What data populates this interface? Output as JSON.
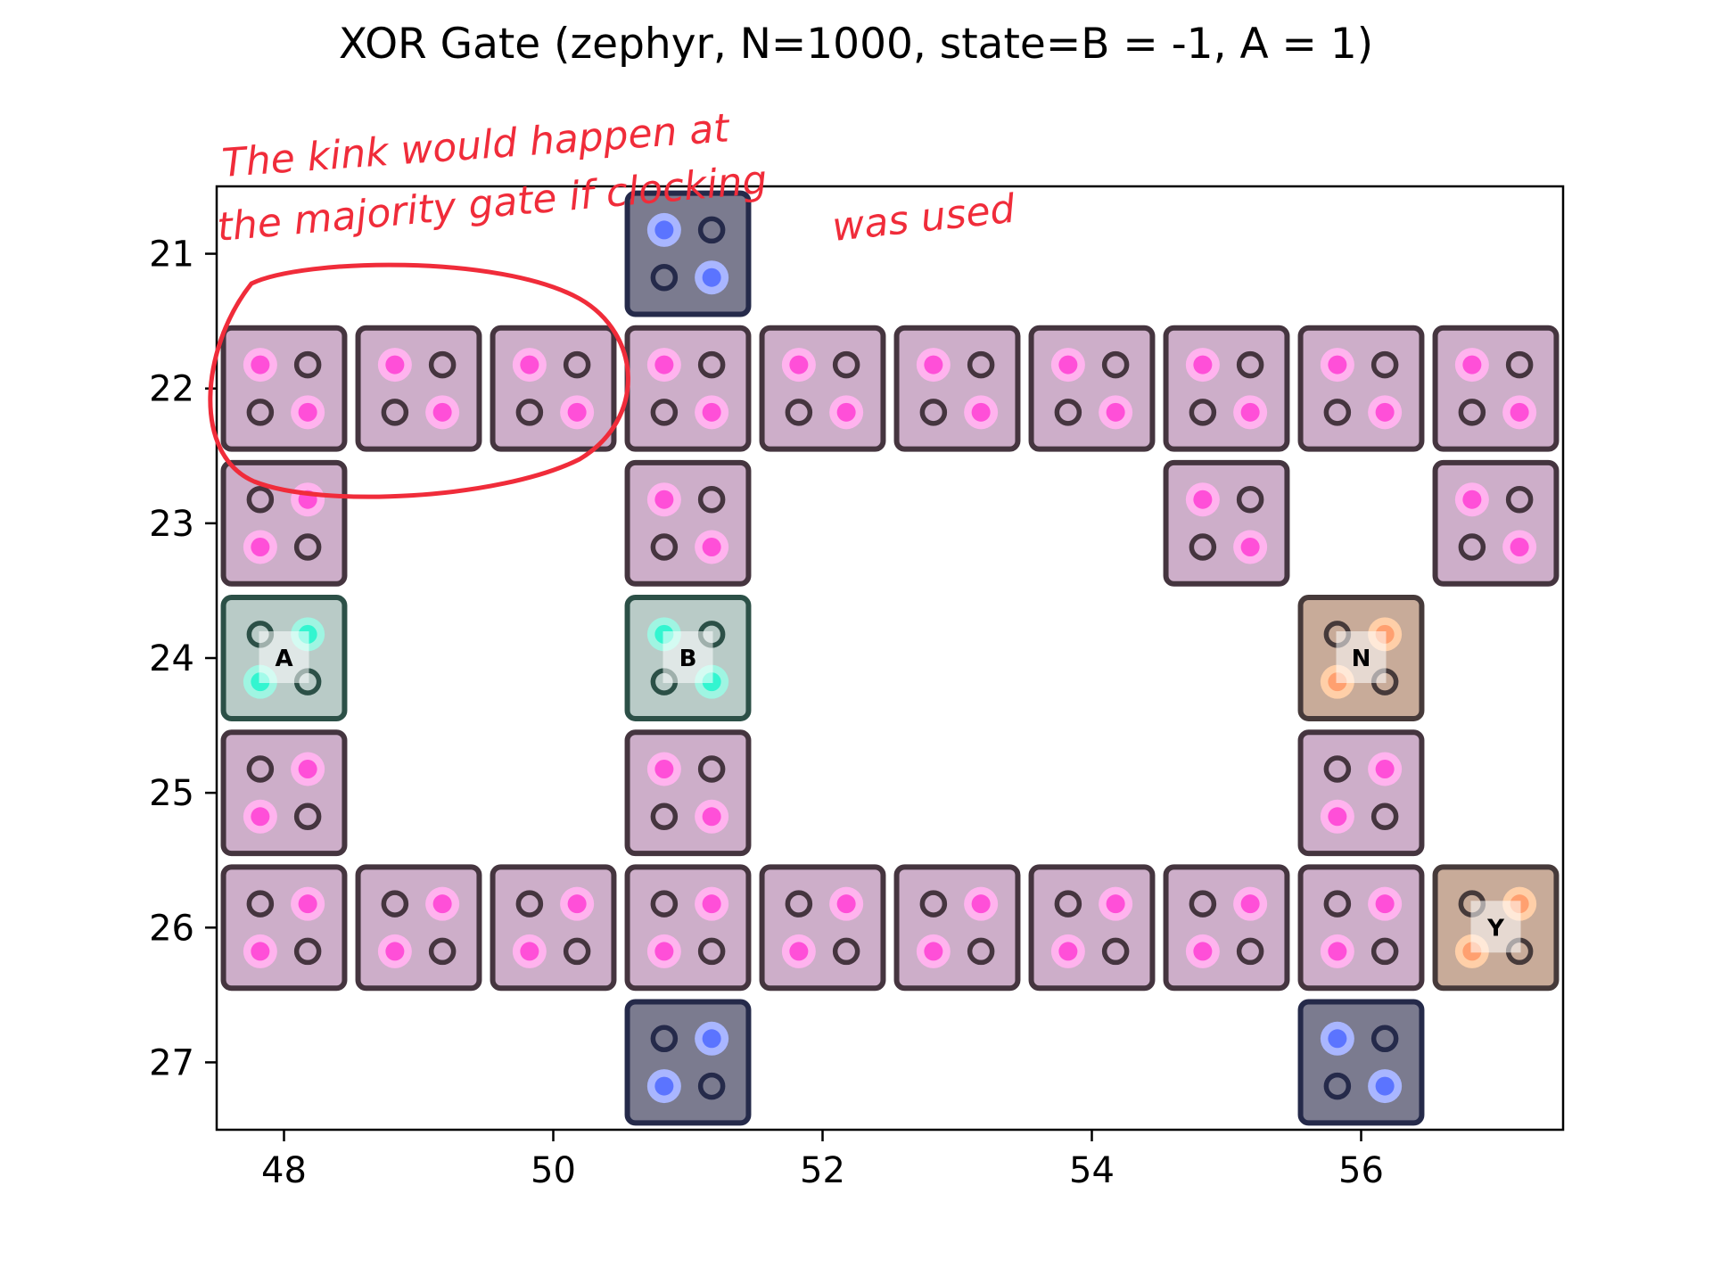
{
  "chart_data": {
    "type": "scatter",
    "title": "XOR Gate (zephyr, N=1000, state=B = -1, A = 1)",
    "xlabel": "",
    "ylabel": "",
    "xlim": [
      47.5,
      57.5
    ],
    "ylim": [
      27.5,
      20.5
    ],
    "y_inverted": true,
    "grid": false,
    "x_ticks": [
      48,
      50,
      52,
      54,
      56
    ],
    "y_ticks": [
      21,
      22,
      23,
      24,
      25,
      26,
      27
    ],
    "colors": {
      "normal_fill": "#cdaec9",
      "normal_edge": "#45353f",
      "normal_dot": "#ff4fd8",
      "normal_halo": "#ffb3ee",
      "input_fill": "#b9cbc7",
      "input_edge": "#2c5047",
      "input_dot": "#33f5d0",
      "input_halo": "#9ff5e2",
      "output_fill": "#c8ab99",
      "output_edge": "#463a3a",
      "output_dot": "#ffa070",
      "output_halo": "#ffcfa8",
      "fixed_fill": "#7b7b8f",
      "fixed_edge": "#252a4a",
      "fixed_dot": "#5b74ff",
      "fixed_halo": "#a9b6ff",
      "annotation": "#f02c3a"
    },
    "cells": [
      {
        "x": 51,
        "y": 21,
        "kind": "fixed",
        "pol": "A"
      },
      {
        "x": 48,
        "y": 22,
        "kind": "normal",
        "pol": "A"
      },
      {
        "x": 49,
        "y": 22,
        "kind": "normal",
        "pol": "A"
      },
      {
        "x": 50,
        "y": 22,
        "kind": "normal",
        "pol": "A"
      },
      {
        "x": 51,
        "y": 22,
        "kind": "normal",
        "pol": "A"
      },
      {
        "x": 52,
        "y": 22,
        "kind": "normal",
        "pol": "A"
      },
      {
        "x": 53,
        "y": 22,
        "kind": "normal",
        "pol": "A"
      },
      {
        "x": 54,
        "y": 22,
        "kind": "normal",
        "pol": "A"
      },
      {
        "x": 55,
        "y": 22,
        "kind": "normal",
        "pol": "A"
      },
      {
        "x": 56,
        "y": 22,
        "kind": "normal",
        "pol": "A"
      },
      {
        "x": 57,
        "y": 22,
        "kind": "normal",
        "pol": "A"
      },
      {
        "x": 48,
        "y": 23,
        "kind": "normal",
        "pol": "B"
      },
      {
        "x": 51,
        "y": 23,
        "kind": "normal",
        "pol": "A"
      },
      {
        "x": 55,
        "y": 23,
        "kind": "normal",
        "pol": "A"
      },
      {
        "x": 57,
        "y": 23,
        "kind": "normal",
        "pol": "A"
      },
      {
        "x": 48,
        "y": 24,
        "kind": "input",
        "pol": "B",
        "label": "A"
      },
      {
        "x": 51,
        "y": 24,
        "kind": "input",
        "pol": "A",
        "label": "B"
      },
      {
        "x": 56,
        "y": 24,
        "kind": "output",
        "pol": "B",
        "label": "N"
      },
      {
        "x": 48,
        "y": 25,
        "kind": "normal",
        "pol": "B"
      },
      {
        "x": 51,
        "y": 25,
        "kind": "normal",
        "pol": "A"
      },
      {
        "x": 56,
        "y": 25,
        "kind": "normal",
        "pol": "B"
      },
      {
        "x": 48,
        "y": 26,
        "kind": "normal",
        "pol": "B"
      },
      {
        "x": 49,
        "y": 26,
        "kind": "normal",
        "pol": "B"
      },
      {
        "x": 50,
        "y": 26,
        "kind": "normal",
        "pol": "B"
      },
      {
        "x": 51,
        "y": 26,
        "kind": "normal",
        "pol": "B"
      },
      {
        "x": 52,
        "y": 26,
        "kind": "normal",
        "pol": "B"
      },
      {
        "x": 53,
        "y": 26,
        "kind": "normal",
        "pol": "B"
      },
      {
        "x": 54,
        "y": 26,
        "kind": "normal",
        "pol": "B"
      },
      {
        "x": 55,
        "y": 26,
        "kind": "normal",
        "pol": "B"
      },
      {
        "x": 56,
        "y": 26,
        "kind": "normal",
        "pol": "B"
      },
      {
        "x": 57,
        "y": 26,
        "kind": "output",
        "pol": "B",
        "label": "Y"
      },
      {
        "x": 51,
        "y": 27,
        "kind": "fixed",
        "pol": "B"
      },
      {
        "x": 56,
        "y": 27,
        "kind": "fixed",
        "pol": "A"
      }
    ],
    "annotations": [
      "The kink would happen at",
      "the majority gate if clocking",
      "was used"
    ]
  }
}
